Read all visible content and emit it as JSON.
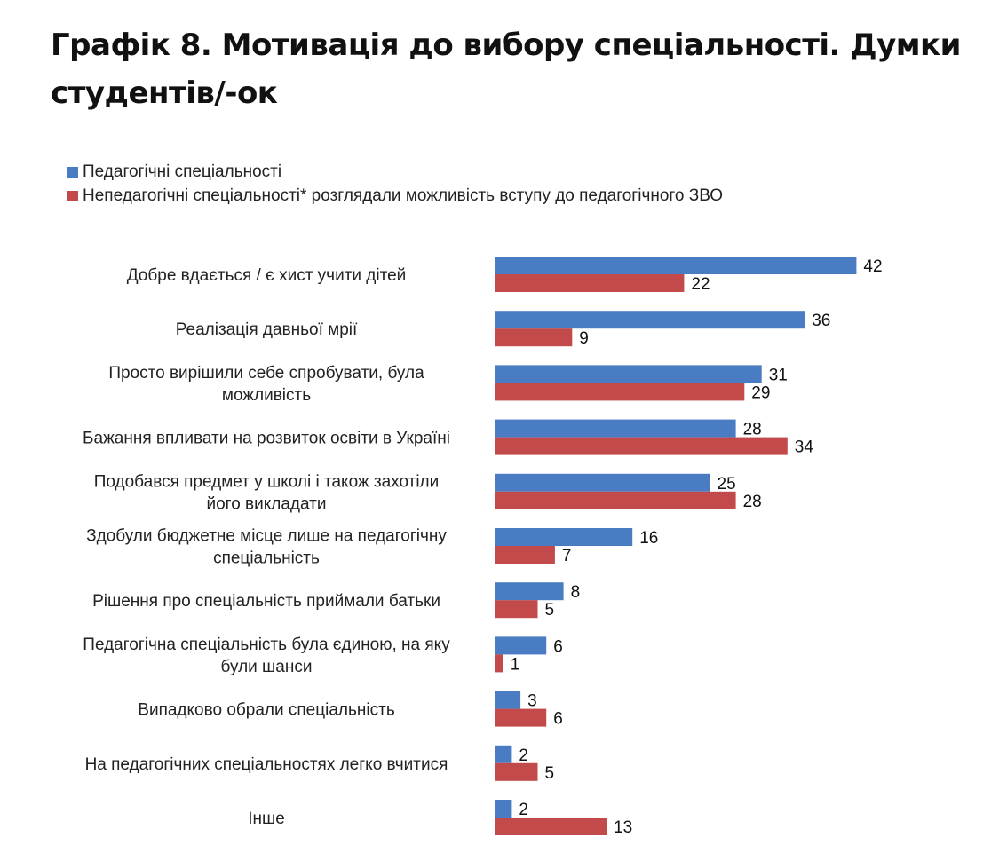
{
  "title": "Графік 8. Мотивація до вибору спеціальності. Думки студентів/-ок",
  "colors": {
    "series_1": "#4a7cc4",
    "series_2": "#c24a4a"
  },
  "chart_data": {
    "type": "bar",
    "orientation": "horizontal",
    "title": "Графік 8. Мотивація до вибору спеціальності. Думки студентів/-ок",
    "xlabel": "",
    "ylabel": "",
    "grid": false,
    "legend_position": "top-left",
    "categories": [
      [
        "Добре вдається / є хист учити дітей"
      ],
      [
        "Реалізація давньої мрії"
      ],
      [
        "Просто вирішили себе спробувати, була",
        "можливість"
      ],
      [
        "Бажання впливати на розвиток освіти в Україні"
      ],
      [
        "Подобався предмет у школі і також захотіли",
        "його викладати"
      ],
      [
        "Здобули бюджетне місце лише на педагогічну",
        "спеціальність"
      ],
      [
        "Рішення про спеціальність приймали батьки"
      ],
      [
        "Педагогічна спеціальність була єдиною, на яку",
        "були шанси"
      ],
      [
        "Випадково обрали спеціальність"
      ],
      [
        "На педагогічних спеціальностях легко вчитися"
      ],
      [
        "Інше"
      ]
    ],
    "series": [
      {
        "name": "Педагогічні спеціальності",
        "values": [
          42,
          36,
          31,
          28,
          25,
          16,
          8,
          6,
          3,
          2,
          2
        ]
      },
      {
        "name": "Непедагогічні спеціальності* розглядали можливість вступу до педагогічного ЗВО",
        "values": [
          22,
          9,
          29,
          34,
          28,
          7,
          5,
          1,
          6,
          5,
          13
        ]
      }
    ],
    "xlim": [
      0,
      45
    ]
  }
}
